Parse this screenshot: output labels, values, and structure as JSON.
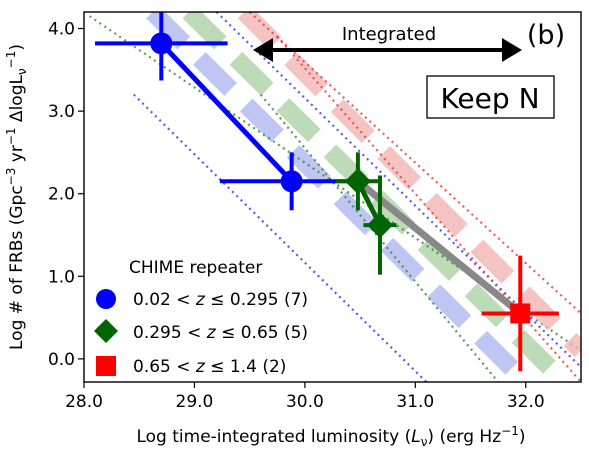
{
  "chart_data": {
    "type": "scatter",
    "panel_label": "(b)",
    "xlabel_main": "Log time-integrated luminosity (",
    "xlabel_sym": "L",
    "xlabel_sub": "ν",
    "xlabel_unit": ") (erg Hz",
    "xlabel_exp": "−1",
    "xlabel_close": ")",
    "ylabel_main": "Log # of FRBs (Gpc",
    "ylabel_exp1": "−3",
    "ylabel_mid": " yr",
    "ylabel_exp2": "−1",
    "ylabel_mid2": " ΔlogL",
    "ylabel_sub": "ν",
    "ylabel_exp3": "−1",
    "ylabel_close": ")",
    "xlim": [
      28.0,
      32.5
    ],
    "ylim": [
      -0.28,
      4.2
    ],
    "xticks": [
      28.0,
      29.0,
      30.0,
      31.0,
      32.0
    ],
    "xtick_labels": [
      "28.0",
      "29.0",
      "30.0",
      "31.0",
      "32.0"
    ],
    "yticks": [
      0.0,
      1.0,
      2.0,
      3.0,
      4.0
    ],
    "ytick_labels": [
      "0.0",
      "1.0",
      "2.0",
      "3.0",
      "4.0"
    ],
    "annotation_arrow_text": "Integrated",
    "annotation_box_text": "Keep N",
    "legend_title": "CHIME repeater",
    "legend_placement": "lower-left",
    "series": [
      {
        "name": "0.02 < z ≤ 0.295 (7)",
        "label_pre": "0.02 < ",
        "label_var": "z",
        "label_post": " ≤ 0.295 (7)",
        "color": "#0000ff",
        "marker": "circle",
        "points": [
          {
            "x": 28.7,
            "y": 3.82,
            "xerr": 0.6,
            "yerr": 0.45
          },
          {
            "x": 29.88,
            "y": 2.15,
            "xerr": 0.65,
            "yerr": 0.35
          }
        ]
      },
      {
        "name": "0.295 < z ≤ 0.65 (5)",
        "label_pre": "0.295 < ",
        "label_var": "z",
        "label_post": " ≤ 0.65 (5)",
        "color": "#006400",
        "marker": "diamond",
        "points": [
          {
            "x": 30.48,
            "y": 2.15,
            "xerr": 0.2,
            "yerr": 0.35
          },
          {
            "x": 30.68,
            "y": 1.62,
            "xerr": 0.15,
            "yerr": 0.6
          }
        ]
      },
      {
        "name": "0.65 < z ≤ 1.4 (2)",
        "label_pre": "0.65 < ",
        "label_var": "z",
        "label_post": " ≤ 1.4 (2)",
        "color": "#ff0000",
        "marker": "square",
        "points": [
          {
            "x": 31.95,
            "y": 0.55,
            "xerr": 0.35,
            "yerr": 0.7
          }
        ]
      }
    ],
    "model_bands": [
      {
        "color": "#aab4f0",
        "dotted_color": "#3a3ae0",
        "dash_pts": [
          [
            28.62,
            4.2
          ],
          [
            32.0,
            -0.28
          ]
        ],
        "dotted_upper": [
          [
            29.2,
            4.2
          ],
          [
            32.5,
            -0.1
          ]
        ],
        "dotted_lower": [
          [
            28.45,
            3.2
          ],
          [
            31.1,
            -0.28
          ]
        ]
      },
      {
        "color": "#a8cfa0",
        "dotted_color": "#3a8a3a",
        "dash_pts": [
          [
            28.95,
            4.2
          ],
          [
            32.35,
            -0.28
          ]
        ],
        "dotted_upper": [
          [
            28.05,
            4.15
          ],
          [
            32.5,
            0.1
          ]
        ],
        "dotted_lower": [
          [
            29.6,
            3.2
          ],
          [
            31.75,
            -0.28
          ]
        ]
      },
      {
        "color": "#f4b0b0",
        "dotted_color": "#e04040",
        "dash_pts": [
          [
            29.45,
            4.2
          ],
          [
            32.5,
            0.1
          ]
        ],
        "dotted_upper": [
          [
            29.5,
            4.2
          ],
          [
            32.5,
            0.55
          ]
        ],
        "dotted_lower": [
          [
            29.75,
            3.9
          ],
          [
            32.5,
            -0.28
          ]
        ]
      }
    ],
    "grey_line": [
      [
        30.48,
        2.15
      ],
      [
        31.95,
        0.55
      ]
    ]
  }
}
